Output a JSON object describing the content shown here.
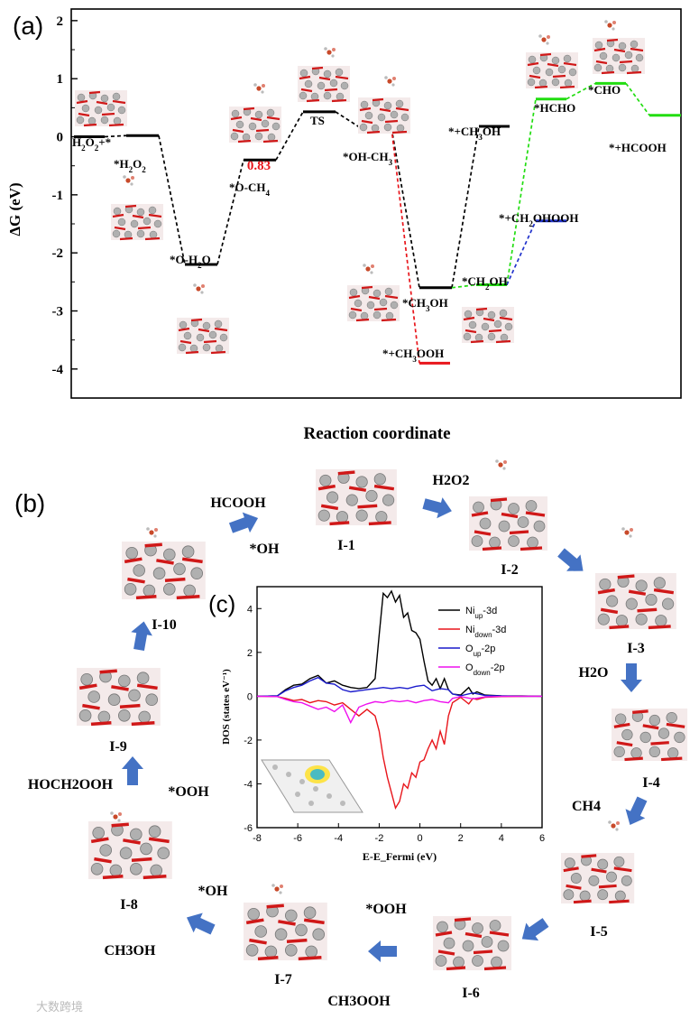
{
  "panel_a": {
    "tag": "(a)"
  },
  "panel_b": {
    "tag": "(b)"
  },
  "panel_c": {
    "tag": "(c)"
  },
  "watermark": "大数跨境",
  "chart_data": [
    {
      "type": "line",
      "title": "",
      "ylabel": "ΔG (eV)",
      "xlabel": "Reaction coordinate",
      "ylim": [
        -4.5,
        2.2
      ],
      "yticks": [
        -4,
        -3,
        -2,
        -1,
        0,
        1,
        2
      ],
      "highlight_label": "0.83",
      "states": [
        {
          "id": "s0",
          "label": "H2O2+*",
          "value": 0.0
        },
        {
          "id": "s1",
          "label": "*H2O2",
          "value": 0.02
        },
        {
          "id": "s2",
          "label": "*O-H2O",
          "value": -2.2
        },
        {
          "id": "s3",
          "label": "*O-CH4",
          "value": -0.4
        },
        {
          "id": "s4",
          "label": "TS",
          "value": 0.43
        },
        {
          "id": "s5",
          "label": "*OH-CH3",
          "value": 0.15
        },
        {
          "id": "s6",
          "label": "*CH3OH",
          "value": -2.6
        },
        {
          "id": "s7",
          "label": "*+CH3OH",
          "value": 0.18
        },
        {
          "id": "s8",
          "label": "*+CH3OOH",
          "value": -3.9
        },
        {
          "id": "s9",
          "label": "*CH2OH",
          "value": -2.55
        },
        {
          "id": "s10",
          "label": "*HCHO",
          "value": 0.65
        },
        {
          "id": "s11",
          "label": "*CHO",
          "value": 0.92
        },
        {
          "id": "s12",
          "label": "*+HCOOH",
          "value": 0.37
        },
        {
          "id": "s13",
          "label": "*+CH2OHOOH",
          "value": -1.45
        }
      ],
      "series": [
        {
          "name": "main",
          "color": "#000000",
          "path": [
            "s0",
            "s1",
            "s2",
            "s3",
            "s4",
            "s5",
            "s6",
            "s7"
          ]
        },
        {
          "name": "ch3ooh",
          "color": "#e8151b",
          "path": [
            "s5",
            "s8"
          ]
        },
        {
          "name": "hcooh",
          "color": "#22dd11",
          "path": [
            "s6",
            "s9",
            "s10",
            "s11",
            "s12"
          ]
        },
        {
          "name": "ch2ohooh",
          "color": "#2233cc",
          "path": [
            "s9",
            "s13"
          ]
        }
      ]
    },
    {
      "type": "line",
      "title": "",
      "xlabel": "E-E_Fermi (eV)",
      "ylabel": "DOS (states eV⁻¹)",
      "xlim": [
        -8,
        6
      ],
      "ylim": [
        -6,
        5
      ],
      "xticks": [
        -8,
        -6,
        -4,
        -2,
        0,
        2,
        4,
        6
      ],
      "yticks": [
        -6,
        -4,
        -2,
        0,
        2,
        4
      ],
      "series": [
        {
          "name": "Ni_up-3d",
          "color": "#000000",
          "x": [
            -8,
            -7,
            -6.6,
            -6.2,
            -5.8,
            -5.4,
            -5.0,
            -4.6,
            -4.2,
            -3.8,
            -3.4,
            -3.0,
            -2.6,
            -2.2,
            -2.0,
            -1.8,
            -1.6,
            -1.4,
            -1.2,
            -1.0,
            -0.8,
            -0.6,
            -0.4,
            -0.2,
            0,
            0.2,
            0.4,
            0.6,
            0.8,
            1.0,
            1.2,
            1.4,
            1.6,
            2.0,
            2.4,
            2.6,
            2.8,
            3.2,
            4,
            5,
            6
          ],
          "y": [
            0,
            0.02,
            0.3,
            0.5,
            0.55,
            0.8,
            0.95,
            0.6,
            0.7,
            0.5,
            0.4,
            0.35,
            0.4,
            0.8,
            2.8,
            4.7,
            4.5,
            4.8,
            4.3,
            4.6,
            3.6,
            3.8,
            3.0,
            2.9,
            2.6,
            1.6,
            0.7,
            0.5,
            0.8,
            0.35,
            0.8,
            0.3,
            0.1,
            0.05,
            0.4,
            0.1,
            0.2,
            0.05,
            0.02,
            0.01,
            0
          ]
        },
        {
          "name": "Ni_down-3d",
          "color": "#e8151b",
          "x": [
            -8,
            -7,
            -6.6,
            -6.2,
            -5.8,
            -5.4,
            -5.0,
            -4.6,
            -4.2,
            -3.8,
            -3.4,
            -3.0,
            -2.6,
            -2.2,
            -2.0,
            -1.8,
            -1.6,
            -1.4,
            -1.2,
            -1.0,
            -0.8,
            -0.6,
            -0.4,
            -0.2,
            0,
            0.2,
            0.4,
            0.6,
            0.8,
            1.0,
            1.2,
            1.4,
            1.6,
            2.0,
            2.4,
            2.6,
            2.8,
            3.2,
            4,
            5,
            6
          ],
          "y": [
            0,
            -0.02,
            -0.1,
            -0.2,
            -0.15,
            -0.3,
            -0.2,
            -0.25,
            -0.4,
            -0.3,
            -0.6,
            -0.9,
            -0.6,
            -0.9,
            -1.6,
            -2.8,
            -3.7,
            -4.4,
            -5.1,
            -4.8,
            -4.0,
            -4.2,
            -3.5,
            -3.7,
            -3.0,
            -2.9,
            -2.4,
            -2.0,
            -2.4,
            -1.6,
            -2.2,
            -0.9,
            -0.3,
            -0.05,
            -0.35,
            -0.1,
            -0.15,
            -0.05,
            -0.02,
            -0.01,
            0
          ]
        },
        {
          "name": "O_up-2p",
          "color": "#1a1acc",
          "x": [
            -8,
            -7,
            -6.6,
            -6.2,
            -5.8,
            -5.4,
            -5.0,
            -4.6,
            -4.2,
            -3.8,
            -3.4,
            -3.0,
            -2.6,
            -2.2,
            -1.8,
            -1.4,
            -1.0,
            -0.6,
            -0.2,
            0.2,
            0.6,
            1.0,
            1.4,
            1.6,
            2.0,
            2.6,
            3.2,
            4,
            5,
            6
          ],
          "y": [
            0,
            0.02,
            0.25,
            0.4,
            0.5,
            0.7,
            0.85,
            0.6,
            0.55,
            0.3,
            0.2,
            0.25,
            0.3,
            0.35,
            0.4,
            0.35,
            0.4,
            0.35,
            0.45,
            0.5,
            0.25,
            0.35,
            0.3,
            0.1,
            0.02,
            0.15,
            0.03,
            0.01,
            0,
            0
          ]
        },
        {
          "name": "O_down-2p",
          "color": "#ee11ee",
          "x": [
            -8,
            -7,
            -6.6,
            -6.2,
            -5.8,
            -5.4,
            -5.0,
            -4.6,
            -4.2,
            -3.8,
            -3.4,
            -3.0,
            -2.6,
            -2.2,
            -1.8,
            -1.4,
            -1.0,
            -0.6,
            -0.2,
            0.2,
            0.6,
            1.0,
            1.4,
            1.6,
            2.0,
            2.6,
            3.2,
            4,
            5,
            6
          ],
          "y": [
            0,
            -0.02,
            -0.15,
            -0.25,
            -0.3,
            -0.45,
            -0.6,
            -0.5,
            -0.7,
            -0.4,
            -1.2,
            -0.5,
            -0.35,
            -0.25,
            -0.3,
            -0.2,
            -0.25,
            -0.2,
            -0.3,
            -0.2,
            -0.15,
            -0.25,
            -0.3,
            -0.1,
            -0.02,
            -0.12,
            -0.03,
            -0.01,
            0,
            0
          ]
        }
      ]
    }
  ],
  "cycle": {
    "intermediates": [
      "I-1",
      "I-2",
      "I-3",
      "I-4",
      "I-5",
      "I-6",
      "I-7",
      "I-8",
      "I-9",
      "I-10"
    ],
    "species": {
      "hcooh": "HCOOH",
      "oh_top": "*OH",
      "h2o2": "H2O2",
      "h2o": "H2O",
      "ch4": "CH4",
      "ooh_right": "*OOH",
      "ch3ooh": "CH3OOH",
      "oh_bottom": "*OH",
      "ch3oh": "CH3OH",
      "ooh_left": "*OOH",
      "hoch2ooh": "HOCH2OOH"
    }
  }
}
